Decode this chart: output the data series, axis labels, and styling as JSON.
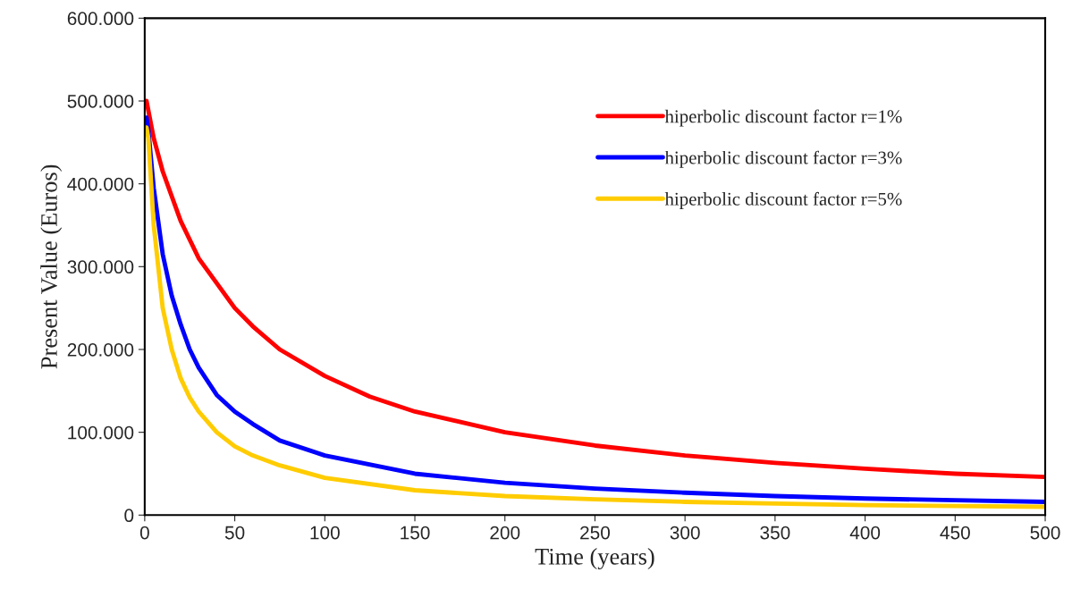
{
  "chart_data": {
    "type": "line",
    "xlabel": "Time (years)",
    "ylabel": "Present Value (Euros)",
    "xlim": [
      0,
      500
    ],
    "xticks": [
      0,
      50,
      100,
      150,
      200,
      250,
      300,
      350,
      400,
      450,
      500
    ],
    "ylim": [
      0,
      600000
    ],
    "yticks": [
      {
        "value": 0,
        "label": "0"
      },
      {
        "value": 100000,
        "label": "100.000"
      },
      {
        "value": 200000,
        "label": "200.000"
      },
      {
        "value": 300000,
        "label": "300.000"
      },
      {
        "value": 400000,
        "label": "400.000"
      },
      {
        "value": 500000,
        "label": "500.000"
      },
      {
        "value": 600000,
        "label": "600.000"
      }
    ],
    "grid": false,
    "legend": "top right",
    "marker": "none",
    "line_style": "solid",
    "series": [
      {
        "name": "hiperbolic discount factor r=1%",
        "color": "#ff0000",
        "x": [
          1,
          5,
          10,
          20,
          30,
          40,
          50,
          60,
          75,
          100,
          125,
          150,
          200,
          250,
          300,
          350,
          400,
          450,
          500
        ],
        "values": [
          500000,
          455000,
          415000,
          355000,
          310000,
          280000,
          250000,
          228000,
          200000,
          168000,
          143000,
          125000,
          100000,
          84000,
          72000,
          63000,
          56000,
          50000,
          46000
        ]
      },
      {
        "name": "hiperbolic discount factor r=3%",
        "color": "#0000ff",
        "x": [
          1,
          2,
          5,
          10,
          15,
          20,
          25,
          30,
          40,
          50,
          60,
          75,
          100,
          150,
          200,
          250,
          300,
          350,
          400,
          450,
          500
        ],
        "values": [
          480000,
          465000,
          395000,
          315000,
          265000,
          230000,
          200000,
          178000,
          145000,
          125000,
          110000,
          90000,
          72000,
          50000,
          39000,
          32000,
          27000,
          23000,
          20000,
          18000,
          16000
        ]
      },
      {
        "name": "hiperbolic discount factor r=5%",
        "color": "#ffcc00",
        "x": [
          1,
          2,
          5,
          10,
          15,
          20,
          25,
          30,
          40,
          50,
          60,
          75,
          100,
          150,
          200,
          250,
          300,
          350,
          400,
          450,
          500
        ],
        "values": [
          468000,
          455000,
          350000,
          250000,
          200000,
          165000,
          142000,
          125000,
          100000,
          83000,
          72000,
          60000,
          45000,
          30000,
          23000,
          19000,
          16000,
          14000,
          12000,
          11000,
          10000
        ]
      }
    ]
  }
}
